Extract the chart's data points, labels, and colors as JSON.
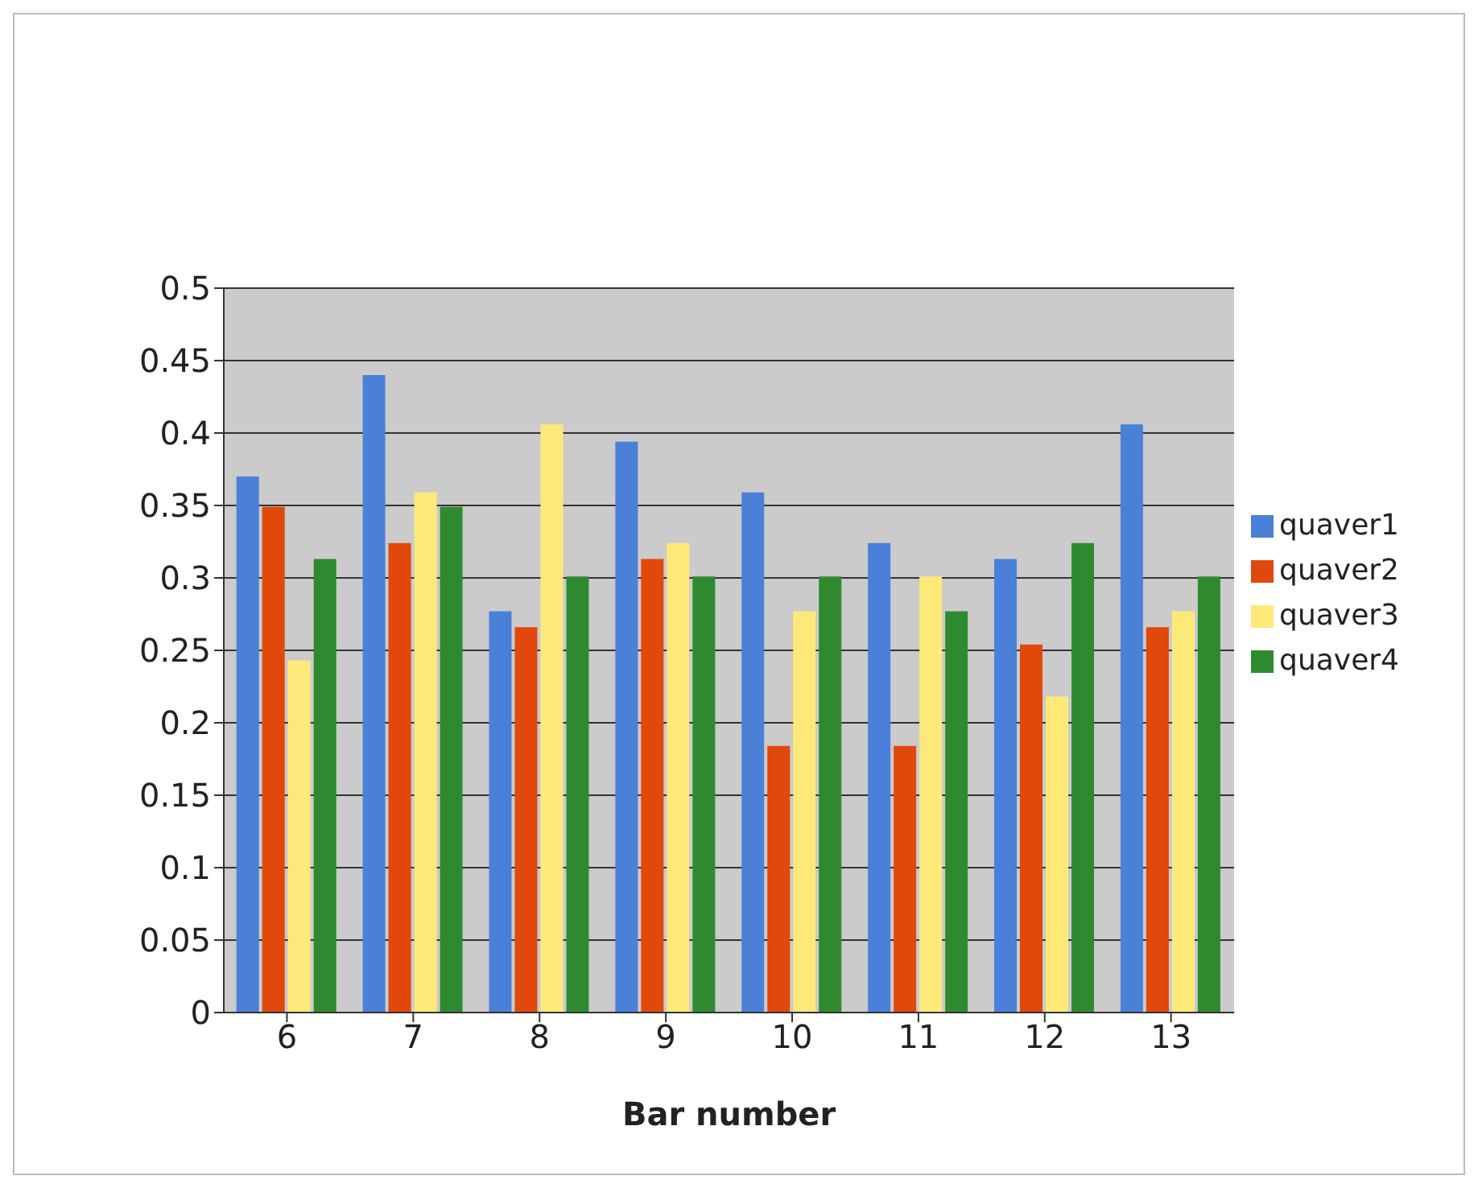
{
  "chart_data": {
    "type": "bar",
    "xlabel": "Bar number",
    "categories": [
      "6",
      "7",
      "8",
      "9",
      "10",
      "11",
      "12",
      "13"
    ],
    "series": [
      {
        "name": "quaver1",
        "color": "#4a80d8",
        "values": [
          0.37,
          0.44,
          0.277,
          0.394,
          0.359,
          0.324,
          0.313,
          0.406
        ]
      },
      {
        "name": "quaver2",
        "color": "#e0480c",
        "values": [
          0.349,
          0.324,
          0.266,
          0.313,
          0.184,
          0.184,
          0.254,
          0.266
        ]
      },
      {
        "name": "quaver3",
        "color": "#fde97a",
        "values": [
          0.243,
          0.359,
          0.406,
          0.324,
          0.277,
          0.301,
          0.218,
          0.277
        ]
      },
      {
        "name": "quaver4",
        "color": "#2f8a2f",
        "values": [
          0.313,
          0.349,
          0.301,
          0.301,
          0.301,
          0.277,
          0.324,
          0.301
        ]
      }
    ],
    "ylim": [
      0,
      0.5
    ],
    "yticks": [
      0,
      0.05,
      0.1,
      0.15,
      0.2,
      0.25,
      0.3,
      0.35,
      0.4,
      0.45,
      0.5
    ],
    "grid": "y",
    "legend": "right"
  }
}
